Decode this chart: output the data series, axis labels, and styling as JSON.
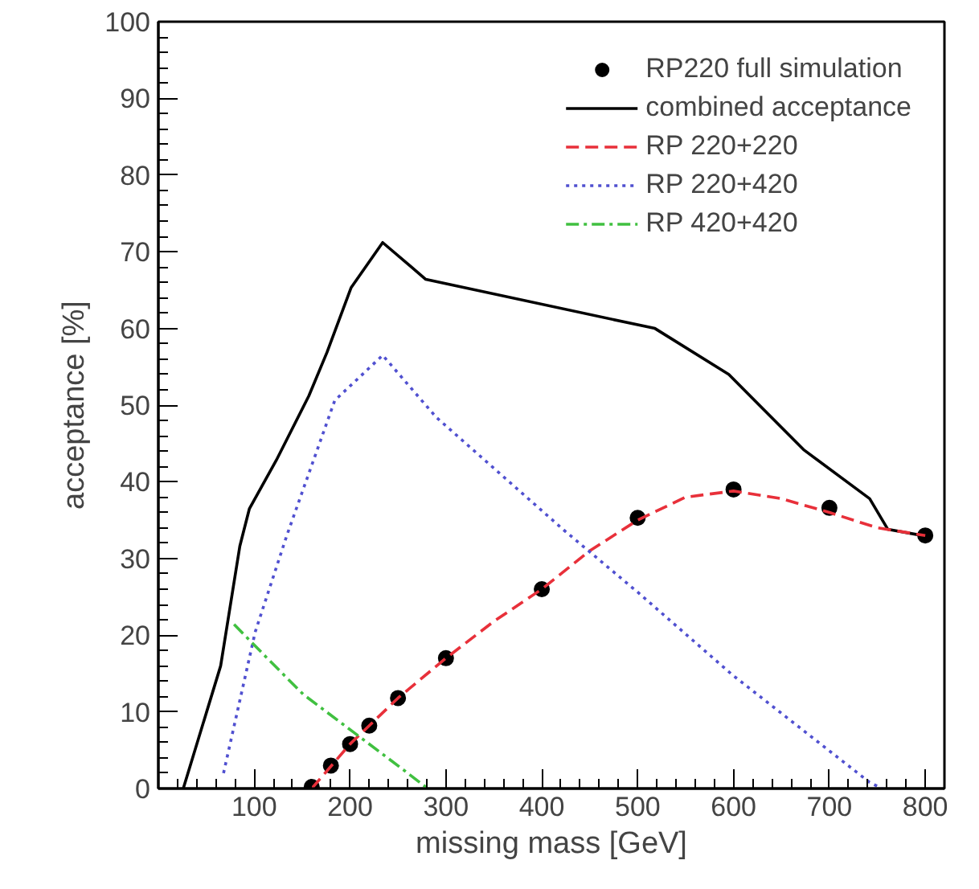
{
  "chart_data": {
    "type": "line",
    "xlabel": "missing mass [GeV]",
    "ylabel": "acceptance [%]",
    "xlim": [
      0,
      820
    ],
    "ylim": [
      0,
      100
    ],
    "xticks": [
      {
        "value": 20,
        "label": null
      },
      {
        "value": 40,
        "label": null
      },
      {
        "value": 60,
        "label": null
      },
      {
        "value": 80,
        "label": null
      },
      100,
      {
        "value": 120,
        "label": null
      },
      {
        "value": 140,
        "label": null
      },
      {
        "value": 160,
        "label": null
      },
      {
        "value": 180,
        "label": null
      },
      200,
      {
        "value": 220,
        "label": null
      },
      {
        "value": 240,
        "label": null
      },
      {
        "value": 260,
        "label": null
      },
      {
        "value": 280,
        "label": null
      },
      300,
      {
        "value": 320,
        "label": null
      },
      {
        "value": 340,
        "label": null
      },
      {
        "value": 360,
        "label": null
      },
      {
        "value": 380,
        "label": null
      },
      400,
      {
        "value": 420,
        "label": null
      },
      {
        "value": 440,
        "label": null
      },
      {
        "value": 460,
        "label": null
      },
      {
        "value": 480,
        "label": null
      },
      500,
      {
        "value": 520,
        "label": null
      },
      {
        "value": 540,
        "label": null
      },
      {
        "value": 560,
        "label": null
      },
      {
        "value": 580,
        "label": null
      },
      600,
      {
        "value": 620,
        "label": null
      },
      {
        "value": 640,
        "label": null
      },
      {
        "value": 660,
        "label": null
      },
      {
        "value": 680,
        "label": null
      },
      700,
      {
        "value": 720,
        "label": null
      },
      {
        "value": 740,
        "label": null
      },
      {
        "value": 760,
        "label": null
      },
      {
        "value": 780,
        "label": null
      },
      800
    ],
    "yticks": [
      0,
      {
        "value": 2,
        "label": null
      },
      {
        "value": 4,
        "label": null
      },
      {
        "value": 6,
        "label": null
      },
      {
        "value": 8,
        "label": null
      },
      10,
      {
        "value": 12,
        "label": null
      },
      {
        "value": 14,
        "label": null
      },
      {
        "value": 16,
        "label": null
      },
      {
        "value": 18,
        "label": null
      },
      20,
      {
        "value": 22,
        "label": null
      },
      {
        "value": 24,
        "label": null
      },
      {
        "value": 26,
        "label": null
      },
      {
        "value": 28,
        "label": null
      },
      30,
      {
        "value": 32,
        "label": null
      },
      {
        "value": 34,
        "label": null
      },
      {
        "value": 36,
        "label": null
      },
      {
        "value": 38,
        "label": null
      },
      40,
      {
        "value": 42,
        "label": null
      },
      {
        "value": 44,
        "label": null
      },
      {
        "value": 46,
        "label": null
      },
      {
        "value": 48,
        "label": null
      },
      50,
      {
        "value": 52,
        "label": null
      },
      {
        "value": 54,
        "label": null
      },
      {
        "value": 56,
        "label": null
      },
      {
        "value": 58,
        "label": null
      },
      60,
      {
        "value": 62,
        "label": null
      },
      {
        "value": 64,
        "label": null
      },
      {
        "value": 66,
        "label": null
      },
      {
        "value": 68,
        "label": null
      },
      70,
      {
        "value": 72,
        "label": null
      },
      {
        "value": 74,
        "label": null
      },
      {
        "value": 76,
        "label": null
      },
      {
        "value": 78,
        "label": null
      },
      80,
      {
        "value": 82,
        "label": null
      },
      {
        "value": 84,
        "label": null
      },
      {
        "value": 86,
        "label": null
      },
      {
        "value": 88,
        "label": null
      },
      90,
      {
        "value": 92,
        "label": null
      },
      {
        "value": 94,
        "label": null
      },
      {
        "value": 96,
        "label": null
      },
      {
        "value": 98,
        "label": null
      },
      100
    ],
    "grid": false,
    "legend": "top right",
    "series": [
      {
        "name": "RP220 full simulation",
        "type": "scatter",
        "marker": "circle",
        "color": "#000000",
        "x": [
          160,
          180,
          200,
          220,
          250,
          300,
          400,
          500,
          600,
          700,
          800
        ],
        "values": [
          0.2,
          3,
          5.8,
          8.2,
          11.8,
          17,
          26,
          35.3,
          39,
          36.6,
          33
        ]
      },
      {
        "name": "combined acceptance",
        "line_style": "solid",
        "color": "#000000",
        "x": [
          26,
          65,
          85,
          95,
          123,
          157,
          176,
          201,
          234,
          279,
          518,
          595,
          673,
          742,
          761,
          801
        ],
        "values": [
          0,
          16,
          31.6,
          36.5,
          42.8,
          51.2,
          56.9,
          65.3,
          71.2,
          66.4,
          60,
          54,
          44.2,
          37.8,
          33.8,
          32.9
        ]
      },
      {
        "name": "RP 220+220",
        "line_style": "dashed",
        "color": "#e8303a",
        "x": [
          160,
          200,
          250,
          300,
          350,
          400,
          450,
          500,
          550,
          600,
          650,
          700,
          750,
          800
        ],
        "values": [
          0,
          5.8,
          11.8,
          17,
          21.8,
          26,
          31,
          35,
          38,
          38.8,
          37.8,
          36,
          34,
          33
        ]
      },
      {
        "name": "RP 220+420",
        "line_style": "dotted",
        "color": "#5050d0",
        "x": [
          68,
          101,
          134,
          184,
          234,
          290,
          423,
          501,
          599,
          742,
          755
        ],
        "values": [
          2,
          20.4,
          33,
          50.6,
          56.5,
          48.4,
          33.7,
          25.5,
          14.8,
          0.8,
          0
        ]
      },
      {
        "name": "RP 420+420",
        "line_style": "dashdot",
        "color": "#40c040",
        "x": [
          79,
          112,
          151,
          203,
          255,
          281
        ],
        "values": [
          21.4,
          17.2,
          12.3,
          7.4,
          2.5,
          0
        ]
      }
    ]
  }
}
